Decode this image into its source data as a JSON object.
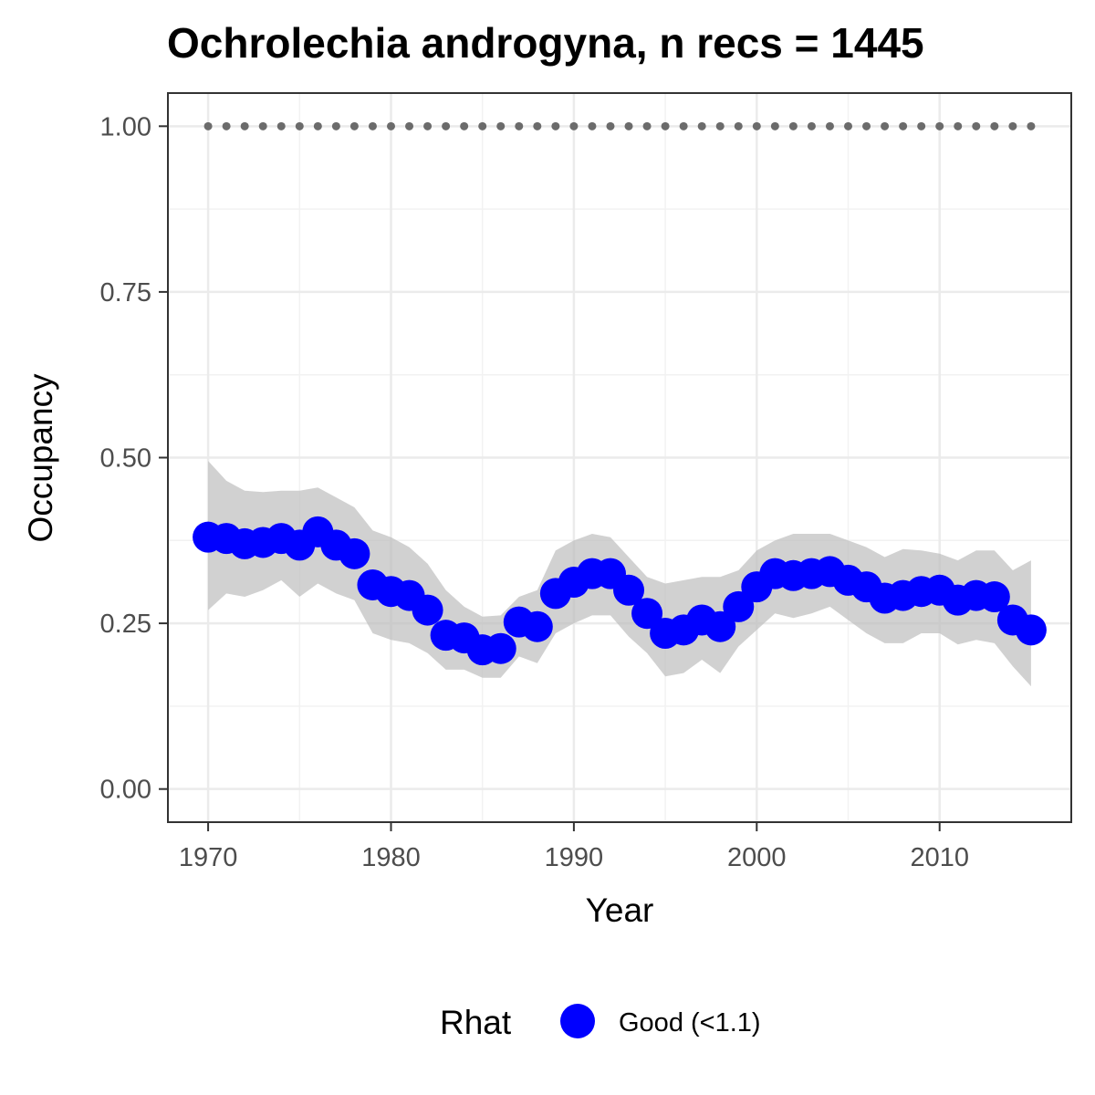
{
  "chart_data": {
    "type": "line",
    "title": "Ochrolechia androgyna, n recs = 1445",
    "xlabel": "Year",
    "ylabel": "Occupancy",
    "xlim": [
      1967.8,
      2017.2
    ],
    "ylim": [
      -0.05,
      1.05
    ],
    "x_ticks": [
      1970,
      1980,
      1990,
      2000,
      2010
    ],
    "y_ticks": [
      0.0,
      0.25,
      0.5,
      0.75,
      1.0
    ],
    "y_tick_labels": [
      "0.00",
      "0.25",
      "0.50",
      "0.75",
      "1.00"
    ],
    "grid": true,
    "legend": {
      "title": "Rhat",
      "position": "bottom",
      "entries": [
        {
          "label": "Good (<1.1)",
          "color": "#0000ff"
        }
      ]
    },
    "colors": {
      "points": "#0000ff",
      "ribbon": "#bebebe",
      "reference_points": "#6b6b6b"
    },
    "years": [
      1970,
      1971,
      1972,
      1973,
      1974,
      1975,
      1976,
      1977,
      1978,
      1979,
      1980,
      1981,
      1982,
      1983,
      1984,
      1985,
      1986,
      1987,
      1988,
      1989,
      1990,
      1991,
      1992,
      1993,
      1994,
      1995,
      1996,
      1997,
      1998,
      1999,
      2000,
      2001,
      2002,
      2003,
      2004,
      2005,
      2006,
      2007,
      2008,
      2009,
      2010,
      2011,
      2012,
      2013,
      2014,
      2015
    ],
    "series": [
      {
        "name": "Occupancy",
        "values": [
          0.38,
          0.378,
          0.37,
          0.372,
          0.378,
          0.368,
          0.388,
          0.368,
          0.355,
          0.308,
          0.298,
          0.292,
          0.27,
          0.232,
          0.228,
          0.21,
          0.212,
          0.252,
          0.245,
          0.295,
          0.312,
          0.325,
          0.325,
          0.3,
          0.265,
          0.235,
          0.24,
          0.255,
          0.245,
          0.275,
          0.305,
          0.325,
          0.322,
          0.325,
          0.328,
          0.315,
          0.305,
          0.288,
          0.292,
          0.298,
          0.3,
          0.285,
          0.292,
          0.29,
          0.255,
          0.24
        ]
      },
      {
        "name": "Upper CI",
        "values": [
          0.495,
          0.465,
          0.45,
          0.448,
          0.45,
          0.45,
          0.455,
          0.44,
          0.425,
          0.39,
          0.38,
          0.365,
          0.34,
          0.3,
          0.275,
          0.26,
          0.262,
          0.29,
          0.3,
          0.36,
          0.375,
          0.385,
          0.38,
          0.35,
          0.32,
          0.31,
          0.315,
          0.32,
          0.32,
          0.33,
          0.36,
          0.375,
          0.385,
          0.385,
          0.385,
          0.375,
          0.365,
          0.35,
          0.362,
          0.36,
          0.355,
          0.345,
          0.36,
          0.36,
          0.33,
          0.345
        ]
      },
      {
        "name": "Lower CI",
        "values": [
          0.27,
          0.295,
          0.29,
          0.3,
          0.315,
          0.29,
          0.31,
          0.295,
          0.285,
          0.235,
          0.225,
          0.22,
          0.205,
          0.18,
          0.18,
          0.168,
          0.168,
          0.2,
          0.19,
          0.235,
          0.25,
          0.262,
          0.262,
          0.23,
          0.205,
          0.17,
          0.175,
          0.195,
          0.175,
          0.215,
          0.24,
          0.265,
          0.258,
          0.265,
          0.275,
          0.255,
          0.235,
          0.22,
          0.22,
          0.235,
          0.235,
          0.218,
          0.225,
          0.22,
          0.185,
          0.155
        ]
      },
      {
        "name": "Reference",
        "values": [
          1,
          1,
          1,
          1,
          1,
          1,
          1,
          1,
          1,
          1,
          1,
          1,
          1,
          1,
          1,
          1,
          1,
          1,
          1,
          1,
          1,
          1,
          1,
          1,
          1,
          1,
          1,
          1,
          1,
          1,
          1,
          1,
          1,
          1,
          1,
          1,
          1,
          1,
          1,
          1,
          1,
          1,
          1,
          1,
          1,
          1
        ]
      }
    ]
  }
}
